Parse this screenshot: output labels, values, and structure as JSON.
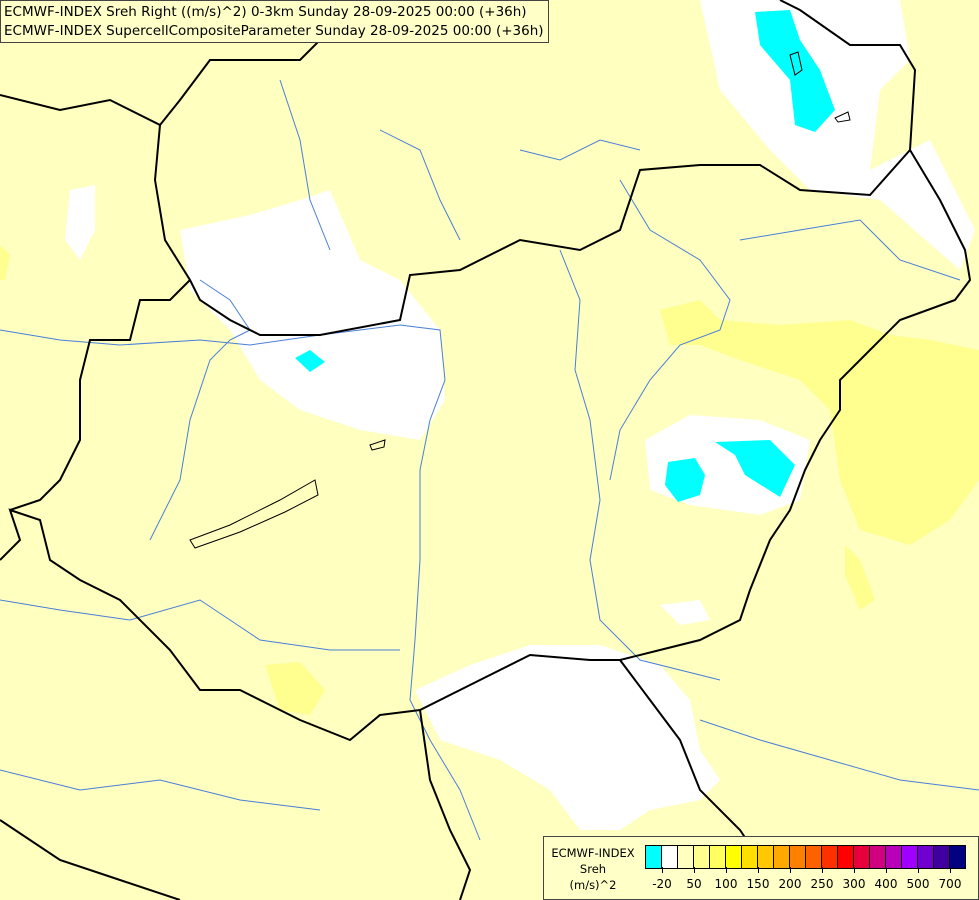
{
  "header": {
    "line1": "ECMWF-INDEX Sreh Right ((m/s)^2) 0-3km Sunday 28-09-2025 00:00 (+36h)",
    "line2": "ECMWF-INDEX SupercellCompositeParameter Sunday 28-09-2025 00:00 (+36h)"
  },
  "legend": {
    "title_lines": [
      "ECMWF-INDEX",
      "Sreh",
      "(m/s)^2"
    ],
    "colors": [
      "#00ffff",
      "#ffffff",
      "#ffffc0",
      "#ffff90",
      "#ffff60",
      "#ffff00",
      "#ffe000",
      "#ffc800",
      "#ffa800",
      "#ff8000",
      "#ff6000",
      "#ff3000",
      "#ff0000",
      "#e8003c",
      "#d00080",
      "#b800b8",
      "#a000ff",
      "#7000d0",
      "#4000a0",
      "#000080"
    ],
    "labels": [
      "-20",
      "50",
      "100",
      "150",
      "200",
      "250",
      "300",
      "400",
      "500",
      "700"
    ]
  },
  "map_colors": {
    "background": "#ffffc0",
    "low": "#ffffff",
    "negative": "#00ffff",
    "moderate": "#ffff90",
    "border": "#000000",
    "river": "#4a7fd8"
  }
}
